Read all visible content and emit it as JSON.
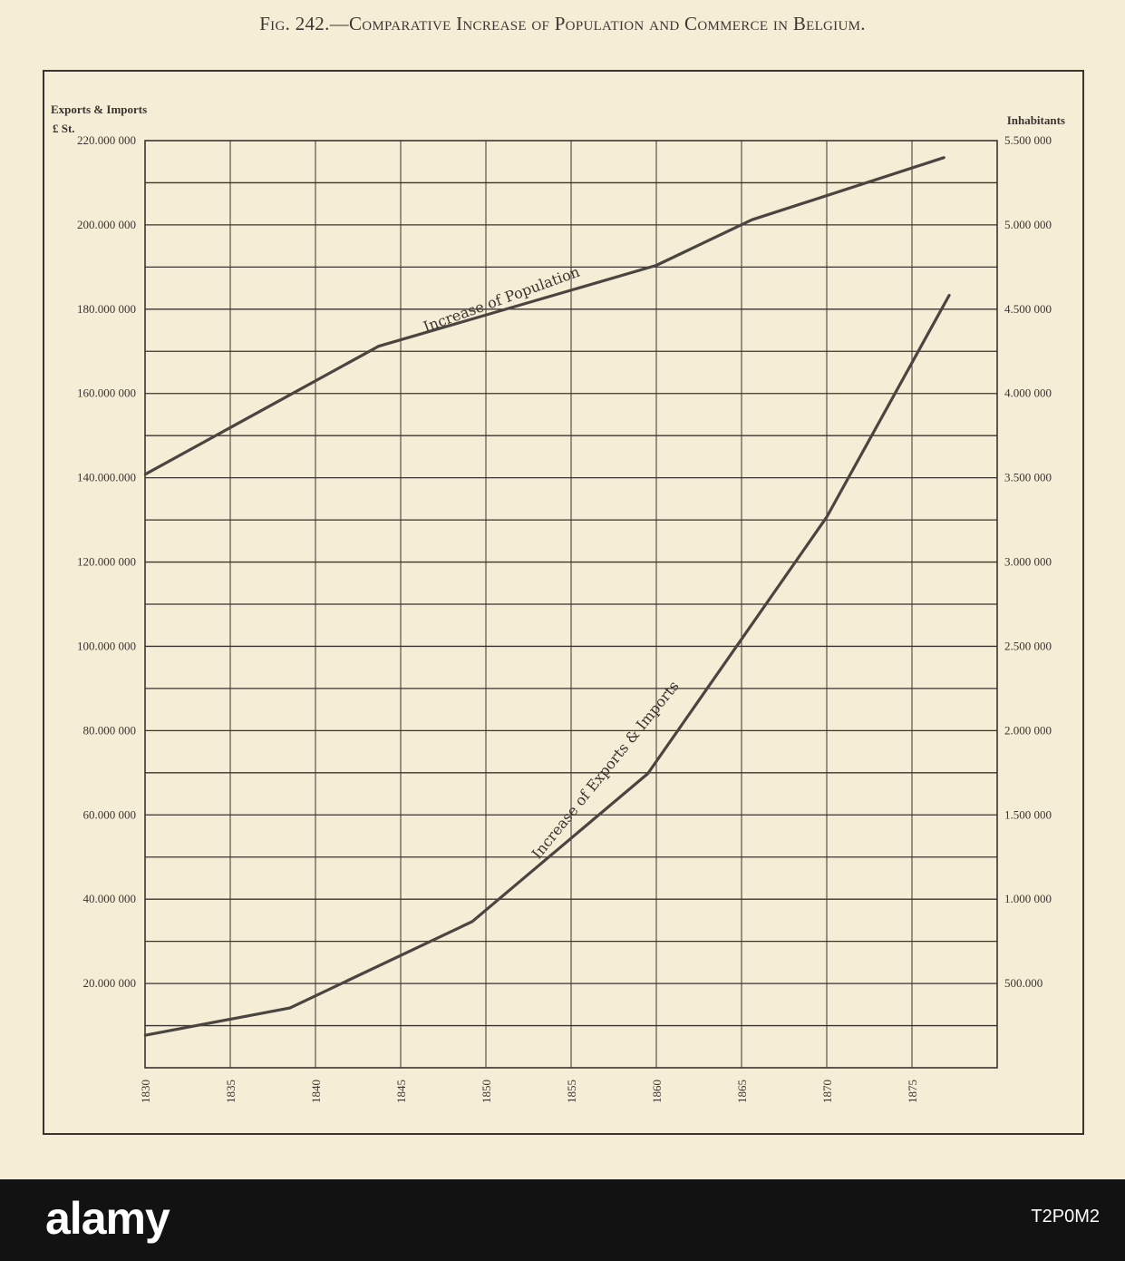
{
  "title": "Fig. 242.—Comparative Increase of Population and Commerce in Belgium.",
  "watermark": {
    "logo": "alamy",
    "image_id": "T2P0M2"
  },
  "chart_data": {
    "type": "line",
    "title": "Fig. 242.—Comparative Increase of Population and Commerce in Belgium.",
    "xlabel": "",
    "x_ticks": [
      "1830",
      "1835",
      "1840",
      "1845",
      "1850",
      "1855",
      "1860",
      "1865",
      "1870",
      "1875"
    ],
    "xlim": [
      1830,
      1880
    ],
    "left_axis": {
      "label_line1": "Exports & Imports",
      "label_line2": "£ St.",
      "ylim": [
        0,
        220000000
      ],
      "ticks": [
        {
          "value": 220000000,
          "label": "220.000 000"
        },
        {
          "value": 200000000,
          "label": "200.000 000"
        },
        {
          "value": 180000000,
          "label": "180.000 000"
        },
        {
          "value": 160000000,
          "label": "160.000 000"
        },
        {
          "value": 140000000,
          "label": "140.000.000"
        },
        {
          "value": 120000000,
          "label": "120.000 000"
        },
        {
          "value": 100000000,
          "label": "100.000 000"
        },
        {
          "value": 80000000,
          "label": "80.000 000"
        },
        {
          "value": 60000000,
          "label": "60.000 000"
        },
        {
          "value": 40000000,
          "label": "40.000 000"
        },
        {
          "value": 20000000,
          "label": "20.000 000"
        }
      ]
    },
    "right_axis": {
      "label": "Inhabitants",
      "ylim": [
        0,
        5500000
      ],
      "ticks": [
        {
          "value": 5500000,
          "label": "5.500 000"
        },
        {
          "value": 5000000,
          "label": "5.000 000"
        },
        {
          "value": 4500000,
          "label": "4.500 000"
        },
        {
          "value": 4000000,
          "label": "4.000 000"
        },
        {
          "value": 3500000,
          "label": "3.500 000"
        },
        {
          "value": 3000000,
          "label": "3.000 000"
        },
        {
          "value": 2500000,
          "label": "2.500 000"
        },
        {
          "value": 2000000,
          "label": "2.000 000"
        },
        {
          "value": 1500000,
          "label": "1.500 000"
        },
        {
          "value": 1000000,
          "label": "1.000 000"
        },
        {
          "value": 500000,
          "label": "500.000"
        }
      ]
    },
    "grid": true,
    "series": [
      {
        "name": "Increase of Population",
        "axis": "right",
        "x": [
          1830,
          1843.7,
          1860,
          1865.6,
          1876.9
        ],
        "y": [
          3520000,
          4280000,
          4760000,
          5030000,
          5400000
        ]
      },
      {
        "name": "Increase of Exports & Imports",
        "axis": "left",
        "x": [
          1830,
          1838.5,
          1849.2,
          1859.5,
          1870,
          1877.2
        ],
        "y": [
          7700000,
          14200000,
          34700000,
          69800000,
          130700000,
          183400000
        ]
      }
    ],
    "colors": {
      "paper": "#f6edd6",
      "ink": "#3a3530"
    }
  }
}
